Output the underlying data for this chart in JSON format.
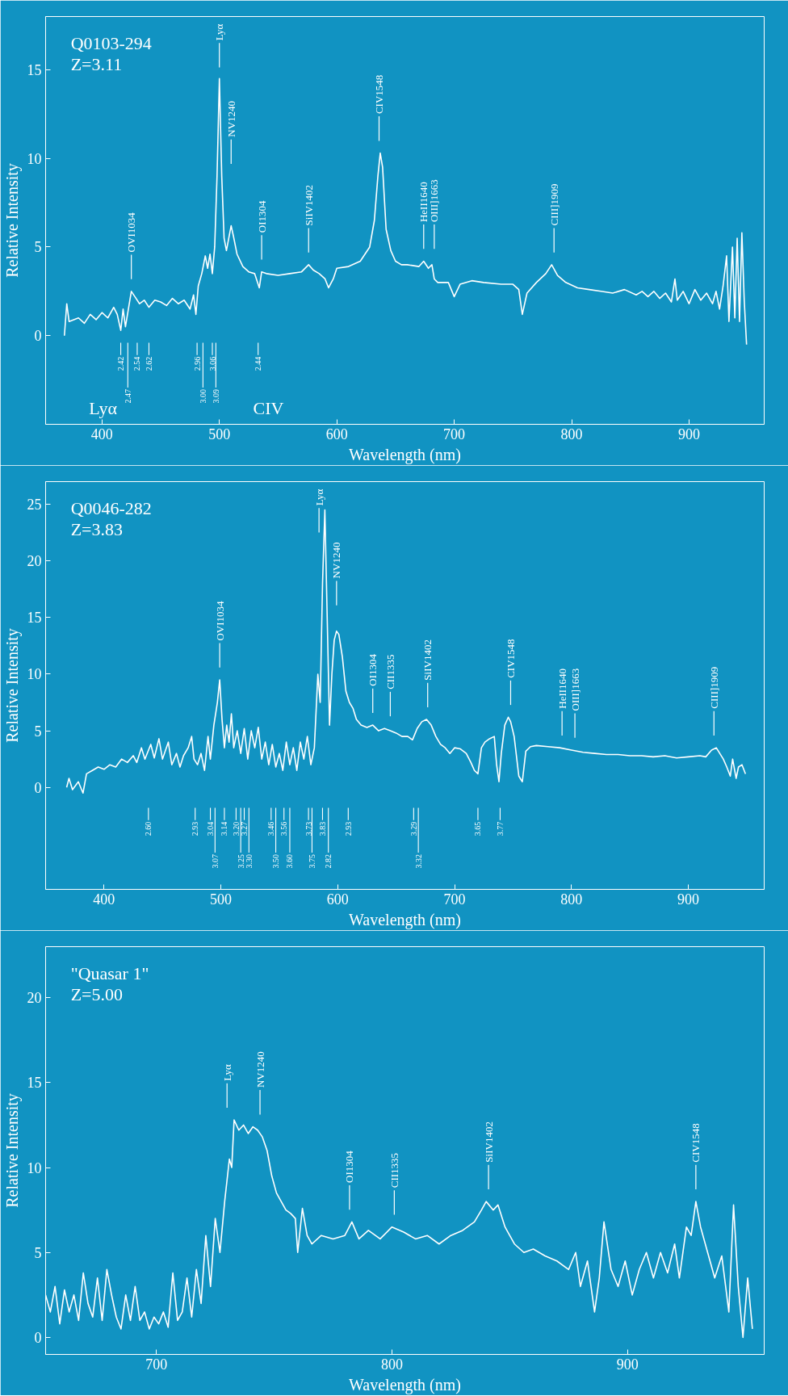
{
  "chart_data": [
    {
      "type": "line",
      "title": "Q0103-294",
      "subtitle": "Z=3.11",
      "xlabel": "Wavelength (nm)",
      "ylabel": "Relative Intensity",
      "xlim": [
        352,
        964
      ],
      "ylim": [
        -5,
        18
      ],
      "xticks": [
        400,
        500,
        600,
        700,
        800,
        900
      ],
      "yticks": [
        0,
        5,
        10,
        15
      ],
      "x": [
        368,
        370,
        372,
        380,
        385,
        390,
        395,
        400,
        405,
        410,
        413,
        416,
        418,
        420,
        425,
        428,
        432,
        436,
        440,
        445,
        450,
        455,
        460,
        465,
        470,
        475,
        478,
        480,
        482,
        485,
        488,
        490,
        492,
        494,
        496,
        498,
        500,
        502,
        504,
        506,
        508,
        510,
        512,
        515,
        520,
        525,
        530,
        534,
        536,
        540,
        550,
        560,
        570,
        576,
        580,
        585,
        590,
        593,
        597,
        600,
        610,
        620,
        628,
        632,
        635,
        637,
        639,
        642,
        646,
        650,
        655,
        660,
        670,
        674,
        678,
        681,
        683,
        686,
        690,
        695,
        700,
        705,
        715,
        725,
        740,
        750,
        755,
        758,
        762,
        770,
        778,
        783,
        788,
        795,
        805,
        815,
        825,
        835,
        845,
        855,
        860,
        865,
        870,
        875,
        880,
        885,
        888,
        890,
        895,
        900,
        905,
        910,
        915,
        920,
        923,
        926,
        929,
        932,
        934,
        937,
        939,
        941,
        943,
        945,
        947,
        949
      ],
      "series": [
        {
          "color": "#ffffff",
          "values": [
            0.0,
            1.8,
            0.8,
            1.0,
            0.7,
            1.2,
            0.9,
            1.3,
            1.0,
            1.6,
            1.2,
            0.3,
            1.5,
            0.5,
            2.5,
            2.2,
            1.8,
            2.0,
            1.6,
            2.0,
            1.9,
            1.7,
            2.1,
            1.8,
            2.0,
            1.5,
            2.3,
            1.2,
            2.8,
            3.5,
            4.5,
            3.8,
            4.6,
            3.5,
            5.0,
            9.0,
            14.5,
            9.0,
            5.5,
            4.8,
            5.5,
            6.2,
            5.6,
            4.6,
            3.9,
            3.6,
            3.5,
            2.7,
            3.6,
            3.5,
            3.4,
            3.5,
            3.6,
            4.0,
            3.7,
            3.5,
            3.2,
            2.7,
            3.2,
            3.8,
            3.9,
            4.2,
            5.0,
            6.5,
            9.0,
            10.3,
            9.5,
            6.0,
            4.8,
            4.2,
            4.0,
            4.0,
            3.9,
            4.2,
            3.8,
            4.0,
            3.2,
            3.0,
            3.0,
            3.0,
            2.2,
            2.9,
            3.1,
            3.0,
            2.9,
            2.9,
            2.6,
            1.2,
            2.4,
            3.0,
            3.5,
            4.0,
            3.4,
            3.0,
            2.7,
            2.6,
            2.5,
            2.4,
            2.6,
            2.3,
            2.5,
            2.2,
            2.5,
            2.1,
            2.4,
            1.9,
            3.2,
            2.0,
            2.5,
            1.8,
            2.6,
            2.0,
            2.4,
            1.8,
            2.5,
            1.5,
            2.8,
            4.5,
            0.8,
            5.0,
            1.0,
            5.5,
            0.8,
            5.8,
            2.0,
            -0.5
          ]
        }
      ],
      "ref_lines": [
        {
          "axis": "x",
          "value": 425,
          "label": "OVI1034"
        },
        {
          "axis": "x",
          "value": 500,
          "label": "Lyα"
        },
        {
          "axis": "x",
          "value": 510,
          "label": "NV1240"
        },
        {
          "axis": "x",
          "value": 536,
          "label": "OI1304"
        },
        {
          "axis": "x",
          "value": 576,
          "label": "SiIV1402"
        },
        {
          "axis": "x",
          "value": 636,
          "label": "CIV1548"
        },
        {
          "axis": "x",
          "value": 674,
          "label": "HeII1640"
        },
        {
          "axis": "x",
          "value": 683,
          "label": "OIII]1663"
        },
        {
          "axis": "x",
          "value": 785,
          "label": "CIII]1909"
        }
      ],
      "annotations": [
        "Lyα",
        "CIV",
        {
          "text": "2.42",
          "x": 416
        },
        {
          "text": "2.47",
          "x": 422
        },
        {
          "text": "2.54",
          "x": 430
        },
        {
          "text": "2.62",
          "x": 440
        },
        {
          "text": "2.96",
          "x": 481
        },
        {
          "text": "3.00",
          "x": 486
        },
        {
          "text": "3.06",
          "x": 494
        },
        {
          "text": "3.09",
          "x": 497
        },
        {
          "text": "2.44",
          "x": 533
        }
      ]
    },
    {
      "type": "line",
      "title": "Q0046-282",
      "subtitle": "Z=3.83",
      "xlabel": "Wavelength (nm)",
      "ylabel": "Relative Intensity",
      "xlim": [
        350,
        965
      ],
      "ylim": [
        -9,
        27
      ],
      "xticks": [
        400,
        500,
        600,
        700,
        800,
        900
      ],
      "yticks": [
        0,
        5,
        10,
        15,
        20,
        25
      ],
      "x": [
        368,
        370,
        373,
        378,
        382,
        385,
        390,
        395,
        400,
        405,
        410,
        415,
        420,
        425,
        428,
        432,
        435,
        440,
        443,
        447,
        450,
        455,
        458,
        462,
        465,
        468,
        472,
        475,
        477,
        480,
        483,
        486,
        489,
        491,
        494,
        497,
        499,
        501,
        503,
        505,
        507,
        509,
        511,
        514,
        517,
        520,
        523,
        526,
        529,
        532,
        535,
        538,
        541,
        544,
        547,
        550,
        553,
        556,
        559,
        562,
        565,
        568,
        571,
        574,
        577,
        580,
        583,
        585,
        587,
        589,
        591,
        593,
        595,
        597,
        599,
        601,
        604,
        607,
        610,
        613,
        616,
        620,
        625,
        630,
        635,
        640,
        645,
        650,
        655,
        660,
        664,
        668,
        672,
        676,
        680,
        684,
        688,
        692,
        696,
        700,
        705,
        710,
        714,
        717,
        720,
        723,
        726,
        730,
        734,
        736,
        738,
        740,
        743,
        746,
        748,
        751,
        755,
        758,
        761,
        765,
        770,
        780,
        790,
        800,
        810,
        820,
        830,
        840,
        850,
        860,
        870,
        880,
        890,
        900,
        910,
        915,
        920,
        924,
        927,
        930,
        933,
        936,
        938,
        941,
        943,
        946,
        949
      ],
      "series": [
        {
          "color": "#ffffff",
          "values": [
            0.0,
            0.8,
            -0.2,
            0.5,
            -0.5,
            1.2,
            1.5,
            1.8,
            1.6,
            2.0,
            1.8,
            2.5,
            2.2,
            2.8,
            2.2,
            3.5,
            2.5,
            3.8,
            2.6,
            4.3,
            2.5,
            4.0,
            2.0,
            3.0,
            1.8,
            2.8,
            3.5,
            4.5,
            2.5,
            2.0,
            3.0,
            1.5,
            4.5,
            2.5,
            5.5,
            7.5,
            9.5,
            6.0,
            3.5,
            5.5,
            4.0,
            6.5,
            3.5,
            5.0,
            3.0,
            5.2,
            2.5,
            5.0,
            3.5,
            5.3,
            2.5,
            4.0,
            2.0,
            3.8,
            1.8,
            3.0,
            1.5,
            4.0,
            2.0,
            3.5,
            1.5,
            4.0,
            2.5,
            4.5,
            2.0,
            3.5,
            10.0,
            7.5,
            18.0,
            24.5,
            15.0,
            5.5,
            10.0,
            13.0,
            13.8,
            13.5,
            11.5,
            8.5,
            7.5,
            7.0,
            6.0,
            5.5,
            5.3,
            5.5,
            5.0,
            5.2,
            5.0,
            4.8,
            4.5,
            4.5,
            4.2,
            5.2,
            5.8,
            6.0,
            5.5,
            4.5,
            3.8,
            3.5,
            3.0,
            3.5,
            3.4,
            3.0,
            2.2,
            1.5,
            1.2,
            3.5,
            4.0,
            4.3,
            4.5,
            2.0,
            0.5,
            3.0,
            5.5,
            6.2,
            5.8,
            4.5,
            1.0,
            0.5,
            3.2,
            3.6,
            3.7,
            3.6,
            3.5,
            3.3,
            3.1,
            3.0,
            2.9,
            2.9,
            2.8,
            2.8,
            2.7,
            2.8,
            2.6,
            2.7,
            2.8,
            2.7,
            3.3,
            3.5,
            3.0,
            2.5,
            1.8,
            1.0,
            2.5,
            0.8,
            1.8,
            2.0,
            1.2
          ]
        }
      ],
      "ref_lines": [
        {
          "axis": "x",
          "value": 499,
          "label": "OVI1034"
        },
        {
          "axis": "x",
          "value": 584,
          "label": "Lyα"
        },
        {
          "axis": "x",
          "value": 599,
          "label": "NV1240"
        },
        {
          "axis": "x",
          "value": 630,
          "label": "OI1304"
        },
        {
          "axis": "x",
          "value": 645,
          "label": "CII1335"
        },
        {
          "axis": "x",
          "value": 677,
          "label": "SiIV1402"
        },
        {
          "axis": "x",
          "value": 748,
          "label": "CIV1548"
        },
        {
          "axis": "x",
          "value": 792,
          "label": "HeII1640"
        },
        {
          "axis": "x",
          "value": 803,
          "label": "OIII]1663"
        },
        {
          "axis": "x",
          "value": 922,
          "label": "CIII]1909"
        }
      ],
      "annotations": [
        {
          "text": "2.60",
          "x": 438
        },
        {
          "text": "2.93",
          "x": 478
        },
        {
          "text": "3.04",
          "x": 491
        },
        {
          "text": "3.07",
          "x": 495
        },
        {
          "text": "3.14",
          "x": 503
        },
        {
          "text": "3.20",
          "x": 513
        },
        {
          "text": "3.25",
          "x": 517
        },
        {
          "text": "3.27",
          "x": 520
        },
        {
          "text": "3.30",
          "x": 524
        },
        {
          "text": "3.46",
          "x": 543
        },
        {
          "text": "3.50",
          "x": 547
        },
        {
          "text": "3.56",
          "x": 554
        },
        {
          "text": "3.60",
          "x": 559
        },
        {
          "text": "3.73",
          "x": 575
        },
        {
          "text": "3.75",
          "x": 578
        },
        {
          "text": "3.83",
          "x": 587
        },
        {
          "text": "2.82",
          "x": 592
        },
        {
          "text": "2.93",
          "x": 609
        },
        {
          "text": "3.29",
          "x": 665
        },
        {
          "text": "3.32",
          "x": 669
        },
        {
          "text": "3.65",
          "x": 720
        },
        {
          "text": "3.77",
          "x": 739
        }
      ]
    },
    {
      "type": "line",
      "title": "\"Quasar 1\"",
      "subtitle": "Z=5.00",
      "xlabel": "Wavelength (nm)",
      "ylabel": "Relative Intensity",
      "xlim": [
        653,
        958
      ],
      "ylim": [
        -1,
        23
      ],
      "xticks": [
        700,
        800,
        900
      ],
      "yticks": [
        0,
        5,
        10,
        15,
        20
      ],
      "x": [
        653,
        655,
        657,
        659,
        661,
        663,
        665,
        667,
        669,
        671,
        673,
        675,
        677,
        679,
        681,
        683,
        685,
        687,
        689,
        691,
        693,
        695,
        697,
        699,
        701,
        703,
        705,
        707,
        709,
        711,
        713,
        715,
        717,
        719,
        721,
        723,
        725,
        727,
        729,
        731,
        732,
        733,
        735,
        737,
        739,
        741,
        743,
        745,
        747,
        749,
        751,
        753,
        755,
        757,
        759,
        760,
        762,
        764,
        766,
        770,
        775,
        780,
        783,
        786,
        790,
        795,
        800,
        805,
        810,
        815,
        820,
        825,
        830,
        835,
        838,
        840,
        843,
        845,
        848,
        852,
        856,
        860,
        865,
        870,
        875,
        878,
        880,
        883,
        886,
        888,
        890,
        893,
        896,
        899,
        902,
        905,
        908,
        911,
        914,
        917,
        920,
        922,
        925,
        927,
        929,
        931,
        934,
        937,
        940,
        943,
        945,
        947,
        949,
        951,
        953
      ],
      "series": [
        {
          "color": "#ffffff",
          "values": [
            2.5,
            1.5,
            3.0,
            0.8,
            2.8,
            1.5,
            2.5,
            1.0,
            3.8,
            2.0,
            1.2,
            3.5,
            1.0,
            4.0,
            2.5,
            1.2,
            0.5,
            2.5,
            1.0,
            3.0,
            1.0,
            1.5,
            0.5,
            1.2,
            0.8,
            1.5,
            0.6,
            3.8,
            1.0,
            1.5,
            3.5,
            1.2,
            4.0,
            2.0,
            6.0,
            3.0,
            7.0,
            5.0,
            8.0,
            10.5,
            10.0,
            12.8,
            12.2,
            12.5,
            12.0,
            12.4,
            12.2,
            11.8,
            11.0,
            9.5,
            8.5,
            8.0,
            7.5,
            7.3,
            7.0,
            5.0,
            7.6,
            6.0,
            5.5,
            6.0,
            5.8,
            6.0,
            6.8,
            5.8,
            6.3,
            5.8,
            6.5,
            6.2,
            5.8,
            6.0,
            5.5,
            6.0,
            6.3,
            6.8,
            7.5,
            8.0,
            7.5,
            7.8,
            6.5,
            5.5,
            5.0,
            5.2,
            4.8,
            4.5,
            4.0,
            5.0,
            3.0,
            4.5,
            1.5,
            3.5,
            6.8,
            4.0,
            3.0,
            4.5,
            2.5,
            4.0,
            5.0,
            3.5,
            5.0,
            3.8,
            5.5,
            3.5,
            6.5,
            6.0,
            8.0,
            6.5,
            5.0,
            3.5,
            4.8,
            1.5,
            7.8,
            3.0,
            0.0,
            3.5,
            0.5
          ]
        }
      ],
      "ref_lines": [
        {
          "axis": "x",
          "value": 730,
          "label": "Lyα"
        },
        {
          "axis": "x",
          "value": 744,
          "label": "NV1240"
        },
        {
          "axis": "x",
          "value": 782,
          "label": "OI1304"
        },
        {
          "axis": "x",
          "value": 801,
          "label": "CII1335"
        },
        {
          "axis": "x",
          "value": 841,
          "label": "SiIV1402"
        },
        {
          "axis": "x",
          "value": 929,
          "label": "CIV1548"
        }
      ]
    }
  ]
}
